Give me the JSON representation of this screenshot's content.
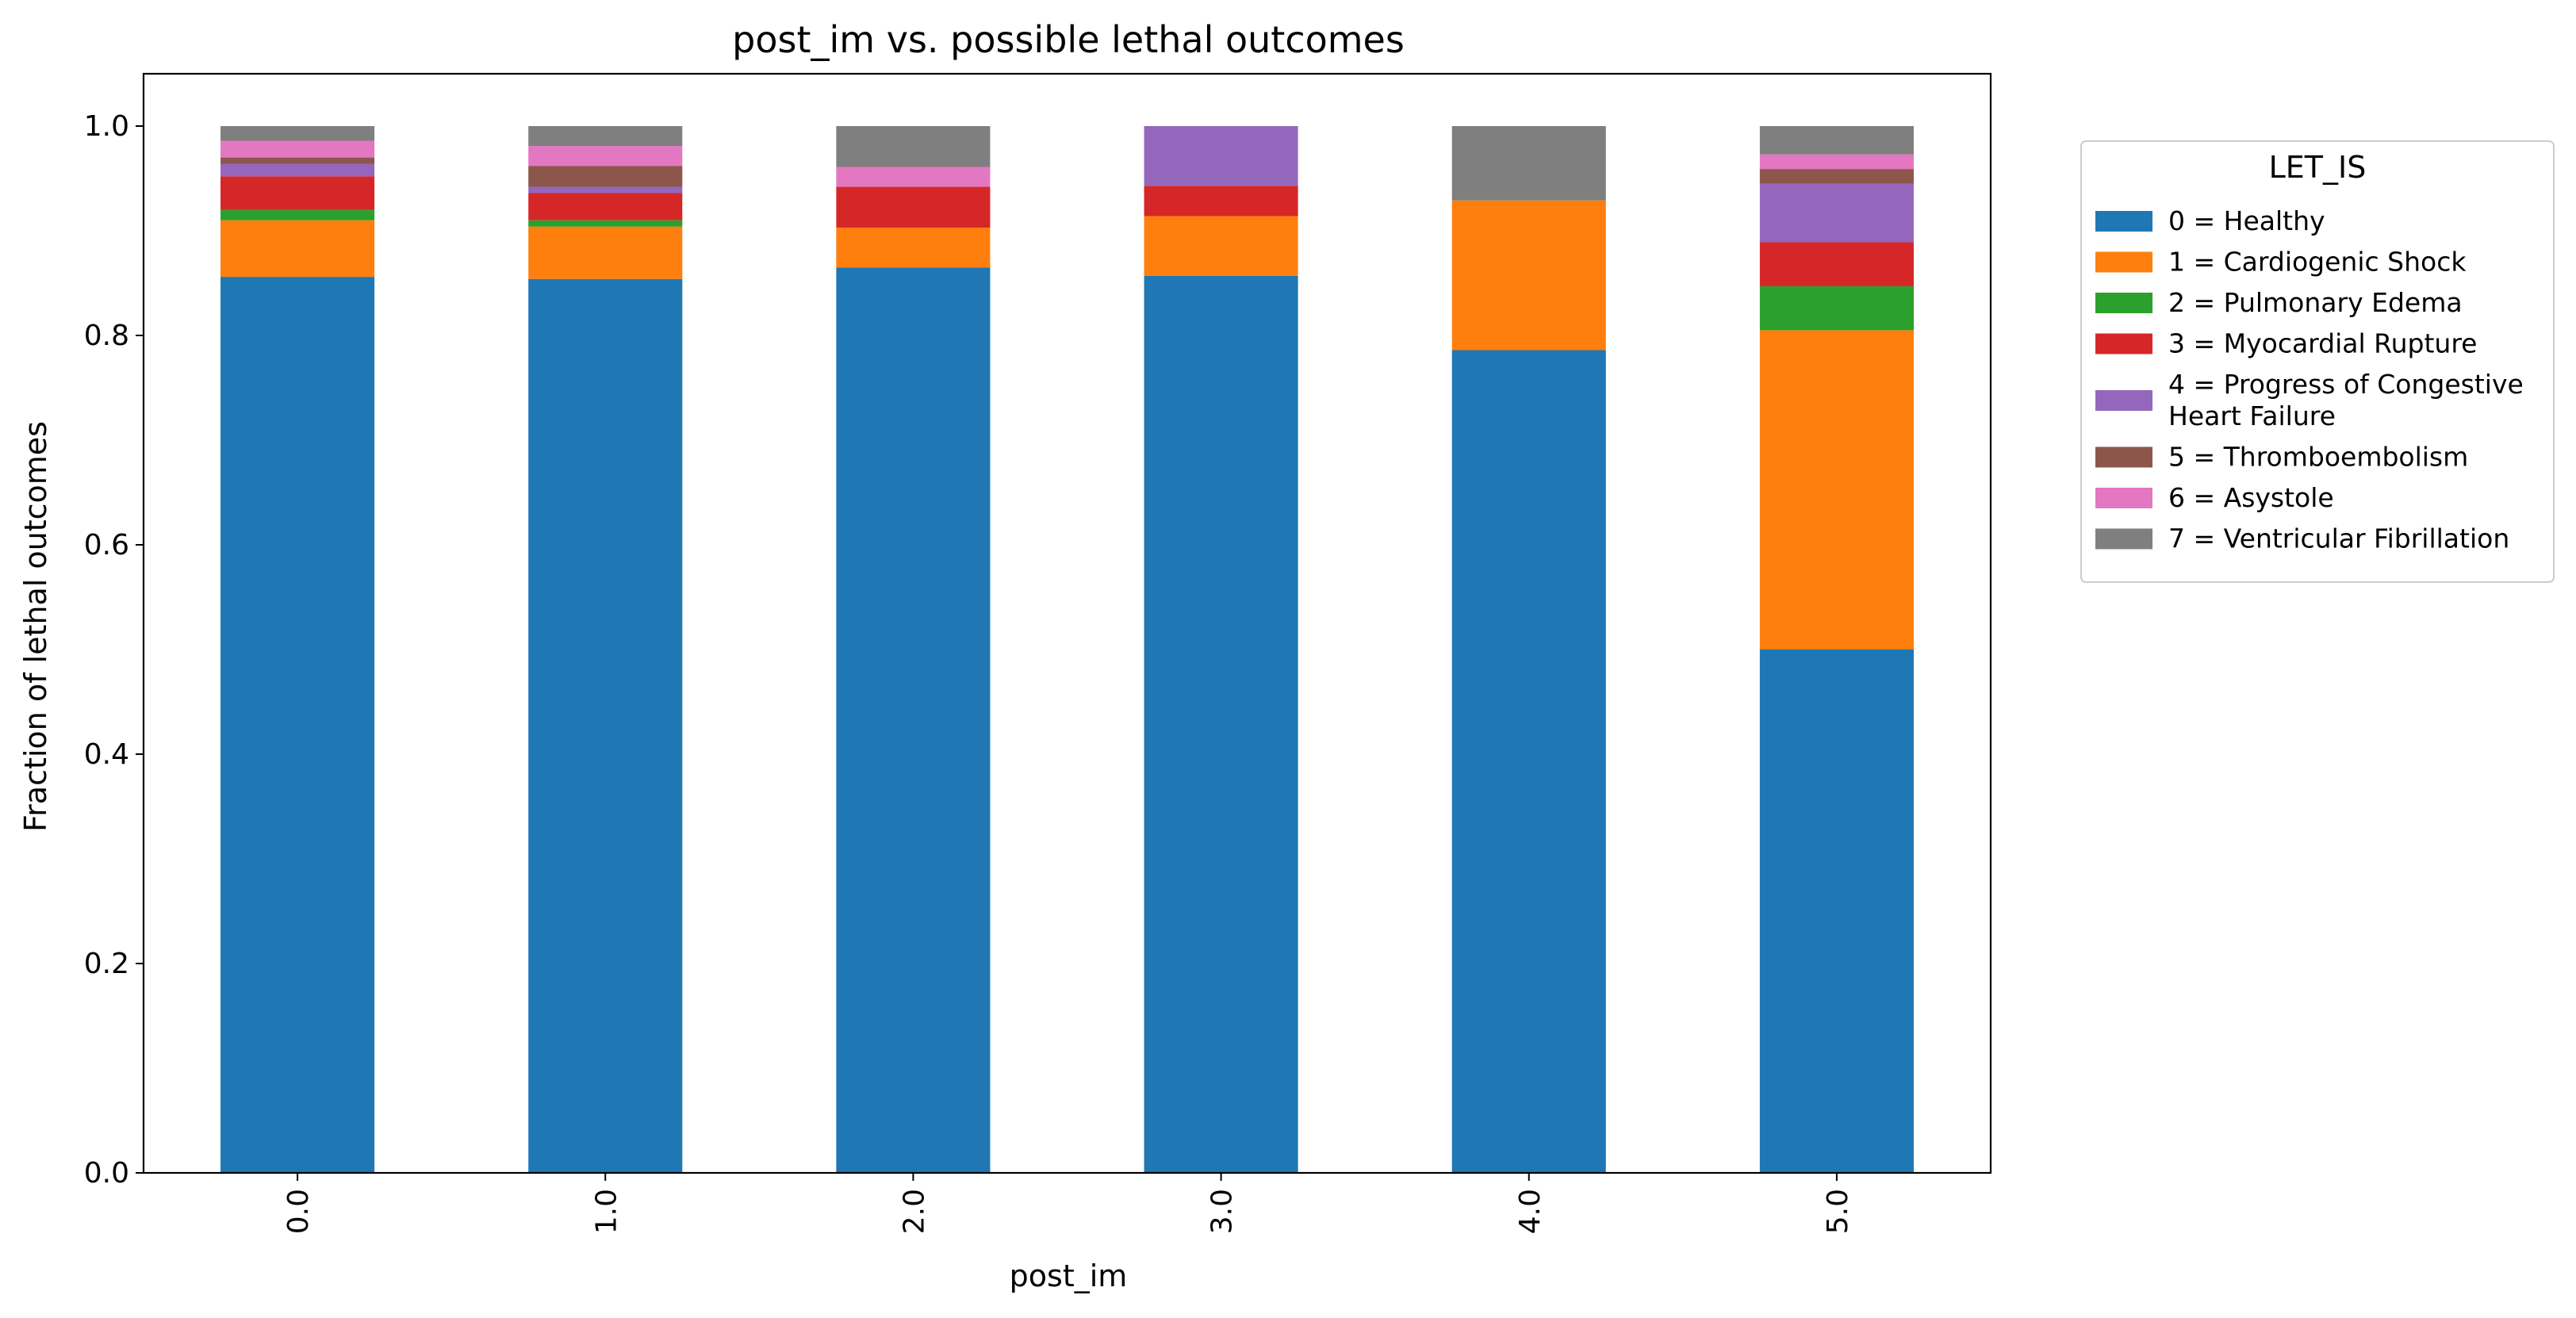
{
  "chart_data": {
    "type": "bar",
    "stacked": true,
    "title": "post_im vs. possible lethal outcomes",
    "xlabel": "post_im",
    "ylabel": "Fraction of lethal outcomes",
    "categories": [
      "0.0",
      "1.0",
      "2.0",
      "3.0",
      "4.0",
      "5.0"
    ],
    "ylim": [
      0,
      1.05
    ],
    "yticks": [
      "0.0",
      "0.2",
      "0.4",
      "0.6",
      "0.8",
      "1.0"
    ],
    "grid": false,
    "legend": {
      "title": "LET_IS",
      "position": "right, outside plot"
    },
    "series": [
      {
        "name": "0 = Healthy",
        "color": "#1f77b4",
        "values": [
          0.856,
          0.854,
          0.865,
          0.857,
          0.786,
          0.5
        ]
      },
      {
        "name": "1 = Cardiogenic Shock",
        "color": "#ff7f0e",
        "values": [
          0.054,
          0.05,
          0.038,
          0.057,
          0.143,
          0.305
        ]
      },
      {
        "name": "2 = Pulmonary Edema",
        "color": "#2ca02c",
        "values": [
          0.01,
          0.006,
          0.0,
          0.0,
          0.0,
          0.042
        ]
      },
      {
        "name": "3 = Myocardial Rupture",
        "color": "#d62728",
        "values": [
          0.032,
          0.026,
          0.039,
          0.029,
          0.0,
          0.042
        ]
      },
      {
        "name": "4 = Progress of Congestive Heart Failure",
        "display_lines": [
          "4 = Progress of Congestive",
          "Heart Failure"
        ],
        "color": "#9467bd",
        "values": [
          0.012,
          0.006,
          0.0,
          0.057,
          0.0,
          0.056
        ]
      },
      {
        "name": "5 = Thromboembolism",
        "color": "#8c564b",
        "values": [
          0.006,
          0.02,
          0.0,
          0.0,
          0.0,
          0.014
        ]
      },
      {
        "name": "6 = Asystole",
        "color": "#e377c2",
        "values": [
          0.016,
          0.019,
          0.019,
          0.0,
          0.0,
          0.014
        ]
      },
      {
        "name": "7 = Ventricular Fibrillation",
        "color": "#7f7f7f",
        "values": [
          0.014,
          0.019,
          0.039,
          0.0,
          0.071,
          0.027
        ]
      }
    ]
  }
}
